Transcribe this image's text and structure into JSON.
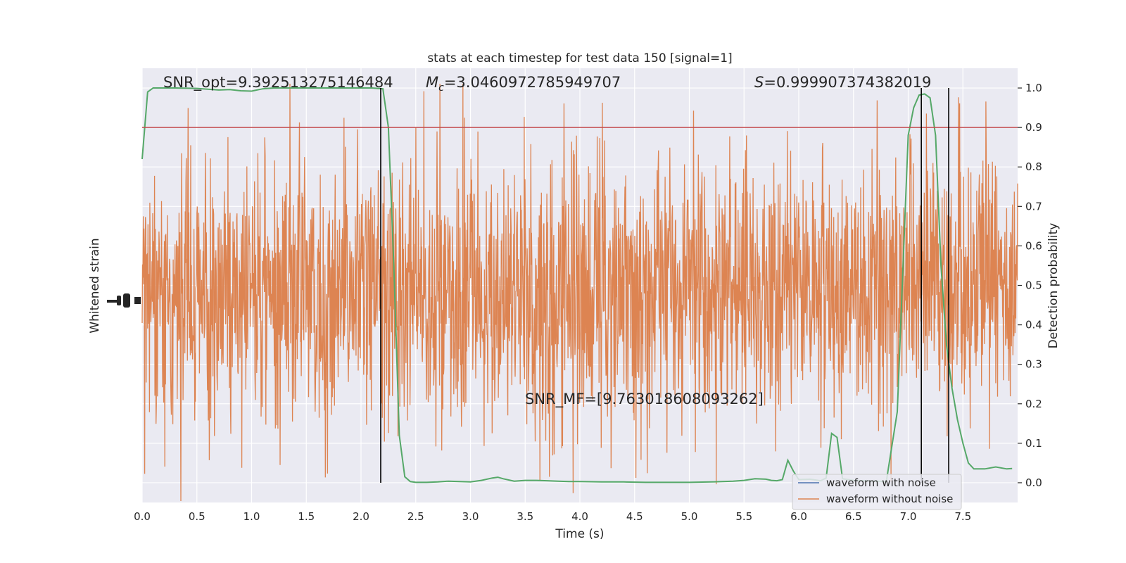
{
  "chart_data": {
    "type": "line",
    "title": "stats at each timestep for test data 150 [signal=1]",
    "xlabel": "Time (s)",
    "ylabel_left": "Whitened strain",
    "ylabel_right": "Detection probability",
    "xlim": [
      0.0,
      8.0
    ],
    "ylim_right": [
      -0.05,
      1.05
    ],
    "xticks": [
      "0.0",
      "0.5",
      "1.0",
      "1.5",
      "2.0",
      "2.5",
      "3.0",
      "3.5",
      "4.0",
      "4.5",
      "5.0",
      "5.5",
      "6.0",
      "6.5",
      "7.0",
      "7.5"
    ],
    "xtick_values": [
      0.0,
      0.5,
      1.0,
      1.5,
      2.0,
      2.5,
      3.0,
      3.5,
      4.0,
      4.5,
      5.0,
      5.5,
      6.0,
      6.5,
      7.0,
      7.5
    ],
    "yticks_right": [
      "0.0",
      "0.1",
      "0.2",
      "0.3",
      "0.4",
      "0.5",
      "0.6",
      "0.7",
      "0.8",
      "0.9",
      "1.0"
    ],
    "ytick_values_right": [
      0.0,
      0.1,
      0.2,
      0.3,
      0.4,
      0.5,
      0.6,
      0.7,
      0.8,
      0.9,
      1.0
    ],
    "grid": true,
    "legend_position": "lower-right",
    "legend": [
      "waveform with noise",
      "waveform without noise"
    ],
    "annotations": {
      "snr_opt": "SNR_opt=9.392513275146484",
      "mc_symbol": "M",
      "mc_sub": "c",
      "mc_value": "=3.0460972785949707",
      "s_symbol": "S",
      "s_value": "=0.999907374382019",
      "snr_mf": "SNR_MF=[9.763018608093262]"
    },
    "threshold": 0.9,
    "vertical_lines_x": [
      2.18,
      7.12,
      7.37
    ],
    "detection_probability": {
      "x": [
        0.0,
        0.05,
        0.1,
        0.2,
        0.3,
        0.5,
        0.7,
        0.8,
        0.9,
        1.0,
        1.1,
        1.2,
        1.4,
        1.6,
        1.8,
        2.0,
        2.1,
        2.2,
        2.25,
        2.3,
        2.35,
        2.4,
        2.45,
        2.5,
        2.6,
        2.7,
        2.8,
        2.9,
        3.0,
        3.1,
        3.2,
        3.25,
        3.3,
        3.4,
        3.5,
        3.6,
        3.7,
        3.8,
        3.9,
        4.0,
        4.2,
        4.4,
        4.6,
        4.8,
        5.0,
        5.2,
        5.3,
        5.4,
        5.5,
        5.6,
        5.7,
        5.75,
        5.8,
        5.85,
        5.9,
        5.95,
        6.0,
        6.1,
        6.2,
        6.25,
        6.3,
        6.35,
        6.4,
        6.5,
        6.6,
        6.8,
        6.9,
        7.0,
        7.05,
        7.1,
        7.15,
        7.2,
        7.25,
        7.3,
        7.35,
        7.4,
        7.45,
        7.5,
        7.55,
        7.6,
        7.7,
        7.8,
        7.9,
        7.95
      ],
      "y": [
        0.82,
        0.99,
        1.0,
        1.0,
        1.0,
        0.999,
        0.995,
        0.996,
        0.993,
        0.992,
        0.998,
        1.0,
        1.0,
        1.0,
        1.0,
        1.0,
        1.0,
        0.998,
        0.9,
        0.55,
        0.12,
        0.015,
        0.003,
        0.001,
        0.001,
        0.002,
        0.004,
        0.003,
        0.002,
        0.006,
        0.012,
        0.014,
        0.01,
        0.004,
        0.006,
        0.006,
        0.005,
        0.004,
        0.003,
        0.003,
        0.002,
        0.002,
        0.001,
        0.001,
        0.001,
        0.002,
        0.003,
        0.004,
        0.006,
        0.01,
        0.009,
        0.006,
        0.005,
        0.008,
        0.057,
        0.03,
        0.008,
        0.009,
        0.005,
        0.012,
        0.125,
        0.115,
        0.01,
        0.006,
        0.005,
        0.003,
        0.18,
        0.88,
        0.95,
        0.982,
        0.985,
        0.975,
        0.88,
        0.55,
        0.35,
        0.24,
        0.16,
        0.1,
        0.05,
        0.035,
        0.035,
        0.04,
        0.035,
        0.036
      ]
    },
    "waveform_without_noise": {
      "x_range": [
        0.0,
        8.0
      ],
      "samples": 2400,
      "spike_x": 2.72
    },
    "colors": {
      "background": "#eaeaf2",
      "grid": "#ffffff",
      "noise_waveform": "#dd8452",
      "clean_waveform": "#4c72b0",
      "detection_probability": "#55a868",
      "threshold": "#c44e52",
      "vertical_lines": "#000000"
    }
  }
}
